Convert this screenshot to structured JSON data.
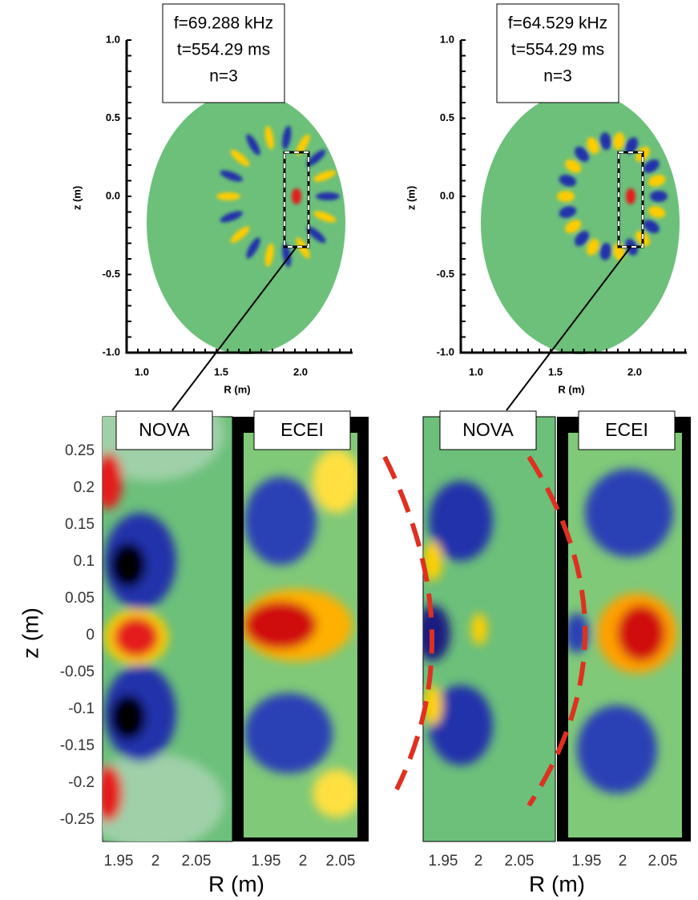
{
  "top_panels": [
    {
      "info": [
        "f=69.288 kHz",
        "t=554.29 ms",
        "n=3"
      ],
      "yticks": [
        "1.0",
        "0.5",
        "0.0",
        "-0.5",
        "-1.0"
      ],
      "xticks": [
        "1.0",
        "1.5",
        "2.0"
      ],
      "ylabel": "z (m)",
      "xlabel": "R (m)"
    },
    {
      "info": [
        "f=64.529 kHz",
        "t=554.29 ms",
        "n=3"
      ],
      "yticks": [
        "1.0",
        "0.5",
        "0.0",
        "-0.5",
        "-1.0"
      ],
      "xticks": [
        "1.0",
        "1.5",
        "2.0"
      ],
      "ylabel": "z (m)",
      "xlabel": "R (m)"
    }
  ],
  "bottom": {
    "ylabel": "z (m)",
    "yticks": [
      "0.25",
      "0.2",
      "0.15",
      "0.1",
      "0.05",
      "0",
      "-0.05",
      "-0.1",
      "-0.15",
      "-0.2",
      "-0.25"
    ],
    "panels": [
      {
        "label": "NOVA",
        "xticks": [
          "1.95",
          "2",
          "2.05"
        ]
      },
      {
        "label": "ECEI",
        "xticks": [
          "1.95",
          "2",
          "2.05"
        ]
      },
      {
        "label": "NOVA",
        "xticks": [
          "1.95",
          "2",
          "2.05"
        ]
      },
      {
        "label": "ECEI",
        "xticks": [
          "1.95",
          "2",
          "2.05"
        ]
      }
    ],
    "xlabels": [
      "R (m)",
      "R (m)"
    ]
  }
}
